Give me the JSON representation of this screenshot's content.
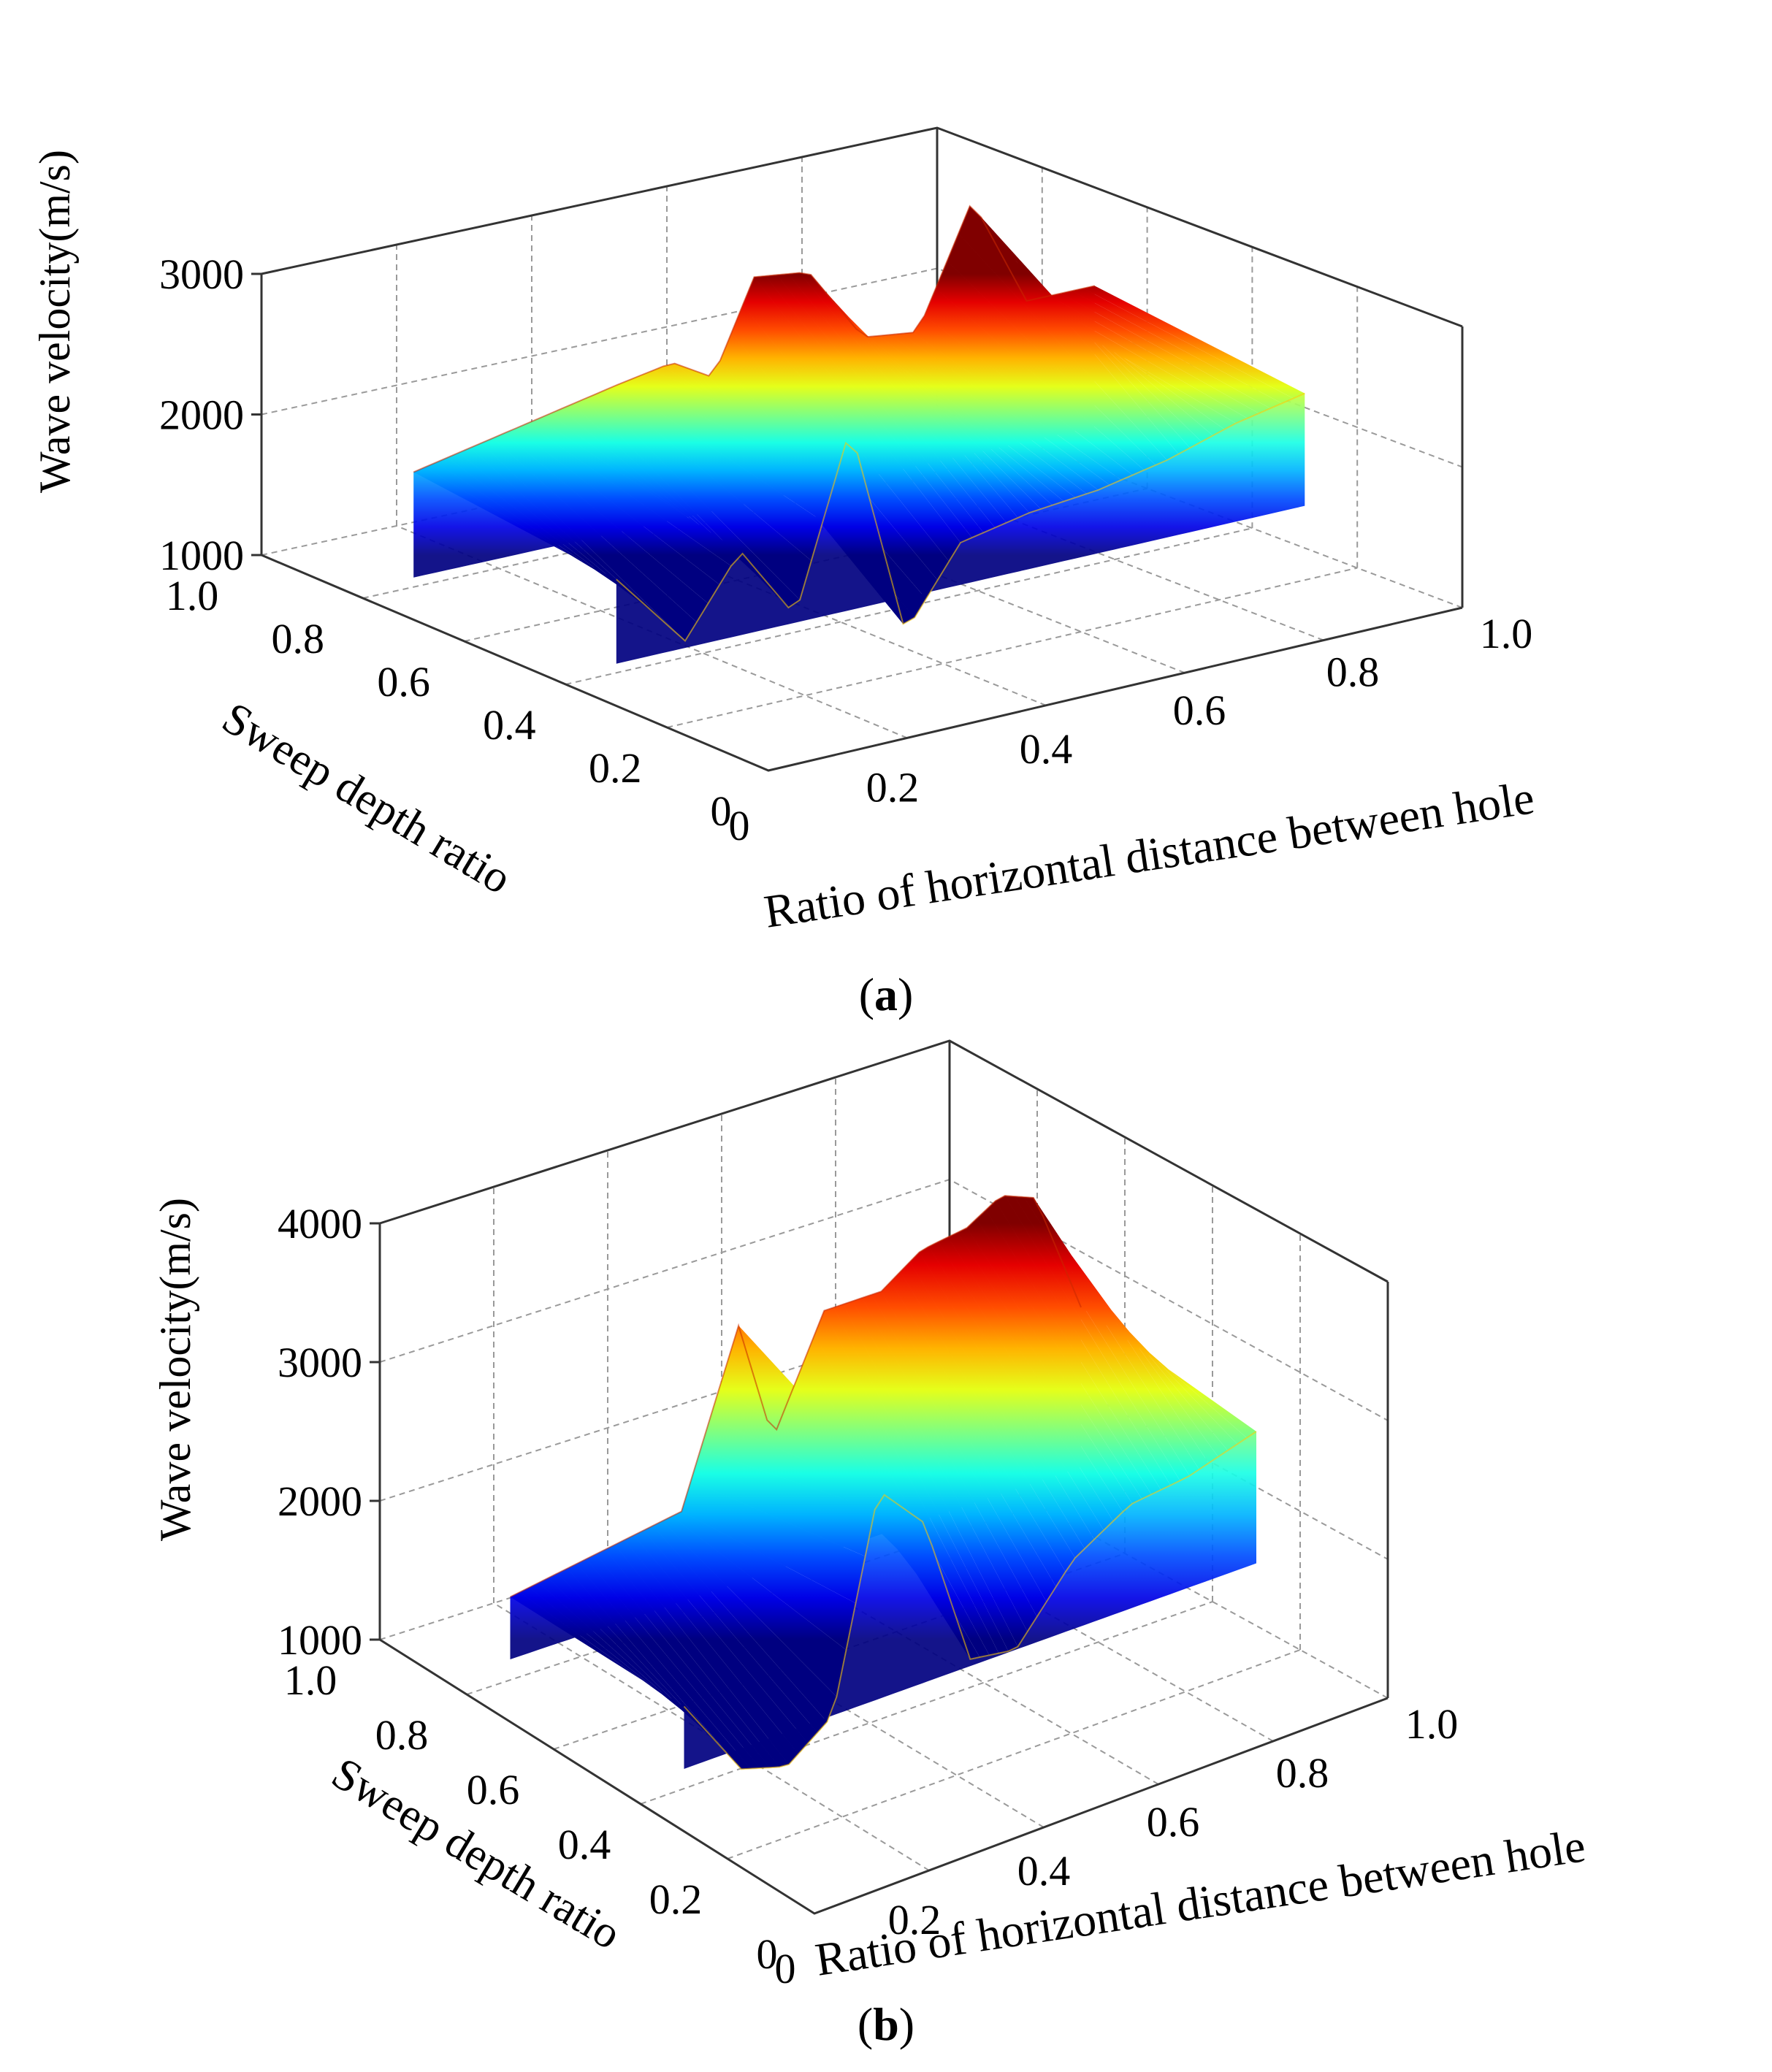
{
  "chart_data": [
    {
      "type": "surface3d",
      "panel_label": "a",
      "zlabel": "Wave velocity(m/s)",
      "ylabel": "Sweep depth ratio",
      "xlabel": "Ratio of horizontal distance between hole",
      "z_ticks": [
        "1000",
        "2000",
        "3000"
      ],
      "zlim": [
        1000,
        3000
      ],
      "depth_ticks": [
        "1.0",
        "0.8",
        "0.6",
        "0.4",
        "0.2",
        "0"
      ],
      "x_ticks": [
        "0",
        "0.2",
        "0.4",
        "0.6",
        "0.8",
        "1.0"
      ],
      "back_ridge": [
        {
          "x": 0.0,
          "v": 2050
        },
        {
          "x": 0.1,
          "v": 2150
        },
        {
          "x": 0.2,
          "v": 2250
        },
        {
          "x": 0.3,
          "v": 2350
        },
        {
          "x": 0.38,
          "v": 2420
        },
        {
          "x": 0.44,
          "v": 2250
        },
        {
          "x": 0.5,
          "v": 2900
        },
        {
          "x": 0.58,
          "v": 2850
        },
        {
          "x": 0.66,
          "v": 2300
        },
        {
          "x": 0.74,
          "v": 2250
        },
        {
          "x": 0.82,
          "v": 3100
        },
        {
          "x": 0.9,
          "v": 2300
        },
        {
          "x": 1.0,
          "v": 2300
        }
      ],
      "front_ridge": [
        {
          "x": 0.0,
          "v": 1900
        },
        {
          "x": 0.1,
          "v": 1350
        },
        {
          "x": 0.18,
          "v": 1900
        },
        {
          "x": 0.26,
          "v": 1350
        },
        {
          "x": 0.34,
          "v": 2600
        },
        {
          "x": 0.42,
          "v": 1050
        },
        {
          "x": 0.5,
          "v": 1600
        },
        {
          "x": 0.6,
          "v": 1700
        },
        {
          "x": 0.7,
          "v": 1750
        },
        {
          "x": 0.8,
          "v": 1850
        },
        {
          "x": 0.9,
          "v": 2000
        },
        {
          "x": 1.0,
          "v": 2100
        }
      ]
    },
    {
      "type": "surface3d",
      "panel_label": "b",
      "zlabel": "Wave velocity(m/s)",
      "ylabel": "Sweep depth ratio",
      "xlabel": "Ratio of horizontal distance between hole",
      "z_ticks": [
        "1000",
        "2000",
        "3000",
        "4000"
      ],
      "zlim": [
        1000,
        4000
      ],
      "depth_ticks": [
        "1.0",
        "0.8",
        "0.6",
        "0.4",
        "0.2",
        "0"
      ],
      "x_ticks": [
        "0",
        "0.2",
        "0.4",
        "0.6",
        "0.8",
        "1.0"
      ],
      "back_ridge": [
        {
          "x": 0.0,
          "v": 1900
        },
        {
          "x": 0.15,
          "v": 2000
        },
        {
          "x": 0.3,
          "v": 2100
        },
        {
          "x": 0.4,
          "v": 3300
        },
        {
          "x": 0.46,
          "v": 2400
        },
        {
          "x": 0.55,
          "v": 3200
        },
        {
          "x": 0.65,
          "v": 3200
        },
        {
          "x": 0.72,
          "v": 3400
        },
        {
          "x": 0.8,
          "v": 3450
        },
        {
          "x": 0.86,
          "v": 3600
        },
        {
          "x": 0.92,
          "v": 3500
        },
        {
          "x": 1.0,
          "v": 2600
        }
      ],
      "front_ridge": [
        {
          "x": 0.0,
          "v": 1900
        },
        {
          "x": 0.1,
          "v": 1300
        },
        {
          "x": 0.18,
          "v": 1200
        },
        {
          "x": 0.26,
          "v": 1450
        },
        {
          "x": 0.34,
          "v": 2950
        },
        {
          "x": 0.42,
          "v": 2600
        },
        {
          "x": 0.5,
          "v": 1500
        },
        {
          "x": 0.58,
          "v": 1450
        },
        {
          "x": 0.68,
          "v": 1950
        },
        {
          "x": 0.78,
          "v": 2200
        },
        {
          "x": 0.88,
          "v": 2250
        },
        {
          "x": 1.0,
          "v": 2400
        }
      ]
    }
  ]
}
